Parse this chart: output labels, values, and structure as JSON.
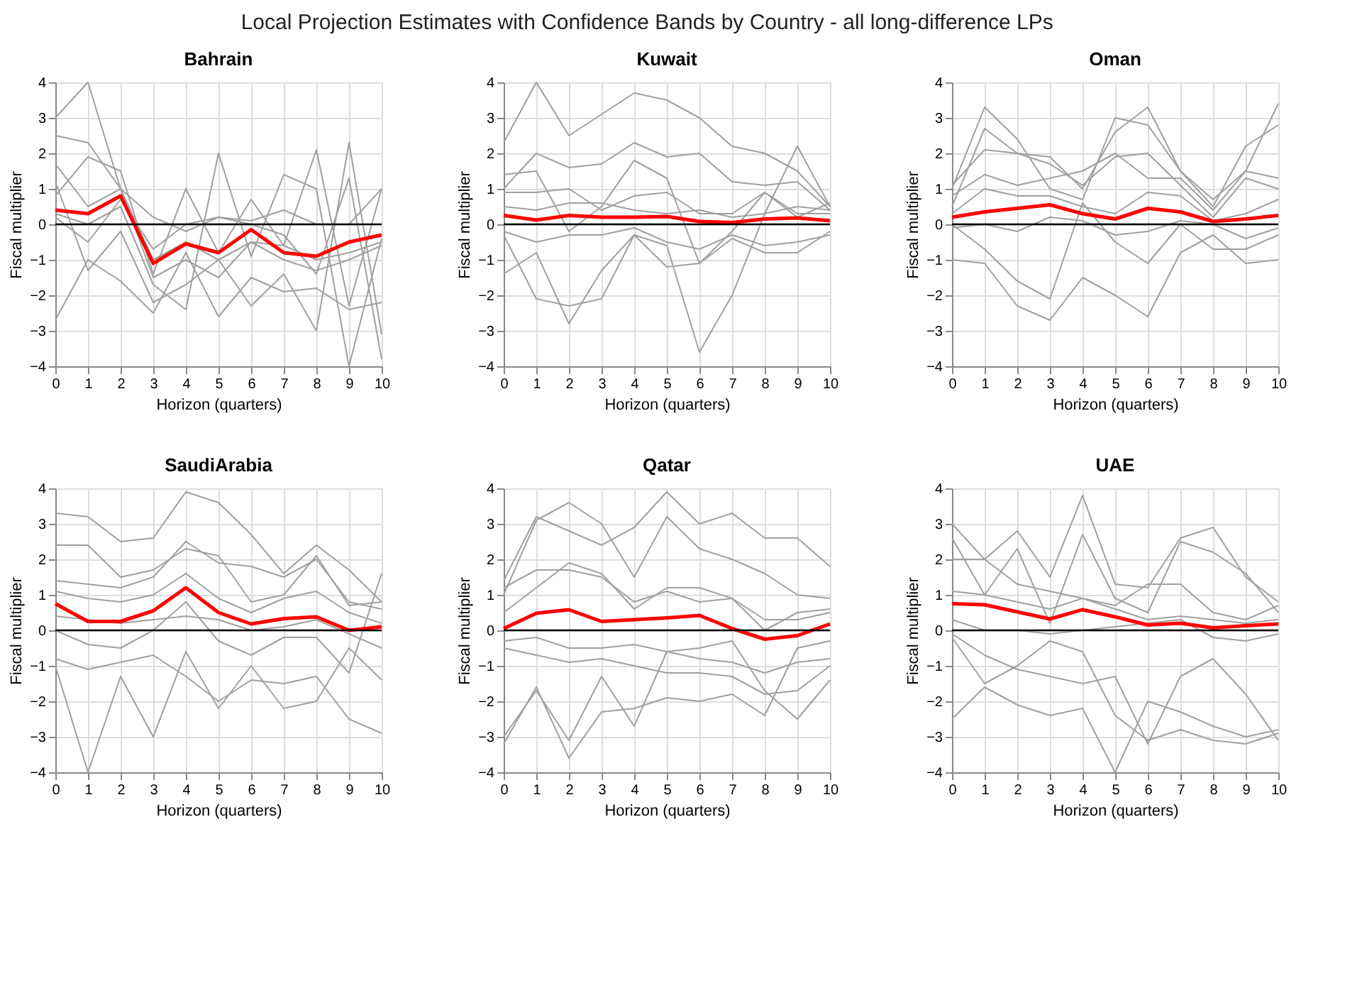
{
  "chart_data": [
    {
      "type": "line",
      "title": "Bahrain",
      "annotations": [
        "Local Projection Estimates with Confidence Bands by Country - all long-difference LPs"
      ],
      "xlabel": "Horizon (quarters)",
      "ylabel": "Fiscal multiplier",
      "x": [
        0,
        1,
        2,
        3,
        4,
        5,
        6,
        7,
        8,
        9,
        10
      ],
      "xlim": [
        0,
        10
      ],
      "xticks": [
        0,
        1,
        2,
        3,
        4,
        5,
        6,
        7,
        8,
        9,
        10
      ],
      "ylim": [
        -4,
        4
      ],
      "yticks": [
        -4,
        -3,
        -2,
        -1,
        0,
        1,
        2,
        3,
        4
      ],
      "grid": true,
      "ref_lines": [
        {
          "axis": "y",
          "value": 0,
          "color": "#000000"
        }
      ],
      "series": [
        {
          "color": "#a0a0a0",
          "values": [
            3.0,
            4.0,
            1.0,
            -1.0,
            -0.5,
            -1.0,
            -0.5,
            -0.6,
            -1.0,
            -0.8,
            -0.5
          ]
        },
        {
          "color": "#a0a0a0",
          "values": [
            2.5,
            2.3,
            1.0,
            -1.5,
            -1.0,
            -1.5,
            -0.5,
            -1.0,
            -1.3,
            -1.0,
            -0.6
          ]
        },
        {
          "color": "#a0a0a0",
          "values": [
            -2.7,
            -1.0,
            -1.6,
            -2.5,
            -0.8,
            -2.6,
            -1.5,
            -1.9,
            -1.8,
            -2.4,
            -2.2
          ]
        },
        {
          "color": "#a0a0a0",
          "values": [
            1.7,
            0.5,
            1.0,
            0.2,
            -0.2,
            0.2,
            0.1,
            0.4,
            0.0,
            0.0,
            1.0
          ]
        },
        {
          "color": "#a0a0a0",
          "values": [
            0.8,
            1.9,
            1.5,
            -1.4,
            1.0,
            -0.8,
            0.7,
            -0.6,
            2.1,
            -2.3,
            1.0
          ]
        },
        {
          "color": "#a0a0a0",
          "values": [
            0.3,
            0.0,
            0.5,
            -1.7,
            -2.4,
            2.0,
            -0.9,
            1.4,
            1.0,
            -4.0,
            -0.4
          ]
        },
        {
          "color": "#a0a0a0",
          "values": [
            1.2,
            -1.3,
            -0.2,
            -2.2,
            -1.7,
            -1.0,
            -2.3,
            -1.4,
            -3.0,
            2.3,
            -3.1
          ]
        },
        {
          "color": "#a0a0a0",
          "values": [
            0.2,
            -0.5,
            0.7,
            -0.7,
            0.0,
            0.2,
            0.0,
            -0.3,
            -1.4,
            1.3,
            -3.8
          ]
        },
        {
          "color": "#ff0000",
          "values": [
            0.4,
            0.3,
            0.8,
            -1.1,
            -0.55,
            -0.8,
            -0.15,
            -0.8,
            -0.9,
            -0.5,
            -0.3
          ]
        }
      ]
    },
    {
      "type": "line",
      "title": "Kuwait",
      "xlabel": "Horizon (quarters)",
      "ylabel": "Fiscal multiplier",
      "x": [
        0,
        1,
        2,
        3,
        4,
        5,
        6,
        7,
        8,
        9,
        10
      ],
      "xlim": [
        0,
        10
      ],
      "xticks": [
        0,
        1,
        2,
        3,
        4,
        5,
        6,
        7,
        8,
        9,
        10
      ],
      "ylim": [
        -4,
        4
      ],
      "yticks": [
        -4,
        -3,
        -2,
        -1,
        0,
        1,
        2,
        3,
        4
      ],
      "grid": true,
      "ref_lines": [
        {
          "axis": "y",
          "value": 0,
          "color": "#000000"
        }
      ],
      "series": [
        {
          "color": "#a0a0a0",
          "values": [
            2.3,
            4.0,
            2.5,
            3.1,
            3.7,
            3.5,
            3.0,
            2.2,
            2.0,
            1.5,
            0.5
          ]
        },
        {
          "color": "#a0a0a0",
          "values": [
            1.0,
            2.0,
            1.6,
            1.7,
            2.3,
            1.9,
            2.0,
            1.2,
            1.1,
            1.2,
            0.4
          ]
        },
        {
          "color": "#a0a0a0",
          "values": [
            1.4,
            1.5,
            -0.2,
            0.5,
            1.8,
            1.3,
            -1.1,
            -0.2,
            0.9,
            0.3,
            0.3
          ]
        },
        {
          "color": "#a0a0a0",
          "values": [
            -1.4,
            -0.8,
            -2.8,
            -1.3,
            -0.3,
            -0.6,
            -3.6,
            -2.0,
            0.3,
            2.2,
            0.5
          ]
        },
        {
          "color": "#a0a0a0",
          "values": [
            -0.3,
            -2.1,
            -2.3,
            -2.1,
            -0.3,
            -1.2,
            -1.1,
            -0.4,
            -0.8,
            -0.8,
            -0.2
          ]
        },
        {
          "color": "#a0a0a0",
          "values": [
            0.9,
            0.9,
            1.0,
            0.4,
            0.8,
            0.9,
            0.3,
            0.3,
            0.9,
            0.2,
            0.6
          ]
        },
        {
          "color": "#a0a0a0",
          "values": [
            -0.2,
            -0.5,
            -0.3,
            -0.3,
            -0.1,
            -0.5,
            -0.7,
            -0.3,
            -0.6,
            -0.5,
            -0.3
          ]
        },
        {
          "color": "#a0a0a0",
          "values": [
            0.5,
            0.4,
            0.6,
            0.6,
            0.4,
            0.3,
            0.4,
            0.2,
            0.3,
            0.5,
            0.4
          ]
        },
        {
          "color": "#ff0000",
          "values": [
            0.25,
            0.12,
            0.25,
            0.2,
            0.2,
            0.22,
            0.08,
            0.05,
            0.15,
            0.18,
            0.1
          ]
        }
      ]
    },
    {
      "type": "line",
      "title": "Oman",
      "xlabel": "Horizon (quarters)",
      "ylabel": "Fiscal multiplier",
      "x": [
        0,
        1,
        2,
        3,
        4,
        5,
        6,
        7,
        8,
        9,
        10
      ],
      "xlim": [
        0,
        10
      ],
      "xticks": [
        0,
        1,
        2,
        3,
        4,
        5,
        6,
        7,
        8,
        9,
        10
      ],
      "ylim": [
        -4,
        4
      ],
      "yticks": [
        -4,
        -3,
        -2,
        -1,
        0,
        1,
        2,
        3,
        4
      ],
      "grid": true,
      "ref_lines": [
        {
          "axis": "y",
          "value": 0,
          "color": "#000000"
        }
      ],
      "series": [
        {
          "color": "#a0a0a0",
          "values": [
            1.0,
            3.3,
            2.4,
            1.0,
            0.7,
            3.0,
            2.8,
            1.5,
            0.7,
            1.5,
            3.4
          ]
        },
        {
          "color": "#a0a0a0",
          "values": [
            0.5,
            2.7,
            2.0,
            1.9,
            1.0,
            2.6,
            3.3,
            1.5,
            0.5,
            2.2,
            2.8
          ]
        },
        {
          "color": "#a0a0a0",
          "values": [
            -1.0,
            -1.1,
            -2.3,
            -2.7,
            -1.5,
            -2.0,
            -2.6,
            -0.8,
            -0.3,
            -1.1,
            -1.0
          ]
        },
        {
          "color": "#a0a0a0",
          "values": [
            0.0,
            -0.7,
            -1.6,
            -2.1,
            0.6,
            -0.5,
            -1.1,
            0.0,
            -0.7,
            -0.7,
            -0.3
          ]
        },
        {
          "color": "#a0a0a0",
          "values": [
            0.8,
            1.4,
            1.1,
            1.3,
            1.5,
            2.0,
            1.3,
            1.3,
            0.4,
            1.5,
            1.3
          ]
        },
        {
          "color": "#a0a0a0",
          "values": [
            1.1,
            2.1,
            2.0,
            1.7,
            1.1,
            1.9,
            2.0,
            1.1,
            0.2,
            1.3,
            1.0
          ]
        },
        {
          "color": "#a0a0a0",
          "values": [
            -0.1,
            0.0,
            -0.2,
            0.2,
            0.1,
            -0.3,
            -0.2,
            0.1,
            0.0,
            -0.4,
            -0.1
          ]
        },
        {
          "color": "#a0a0a0",
          "values": [
            0.3,
            1.0,
            0.8,
            0.8,
            0.5,
            0.3,
            0.9,
            0.8,
            0.1,
            0.3,
            0.7
          ]
        },
        {
          "color": "#ff0000",
          "values": [
            0.2,
            0.35,
            0.45,
            0.55,
            0.3,
            0.15,
            0.45,
            0.35,
            0.08,
            0.15,
            0.25
          ]
        }
      ]
    },
    {
      "type": "line",
      "title": "SaudiArabia",
      "xlabel": "Horizon (quarters)",
      "ylabel": "Fiscal multiplier",
      "x": [
        0,
        1,
        2,
        3,
        4,
        5,
        6,
        7,
        8,
        9,
        10
      ],
      "xlim": [
        0,
        10
      ],
      "xticks": [
        0,
        1,
        2,
        3,
        4,
        5,
        6,
        7,
        8,
        9,
        10
      ],
      "ylim": [
        -4,
        4
      ],
      "yticks": [
        -4,
        -3,
        -2,
        -1,
        0,
        1,
        2,
        3,
        4
      ],
      "grid": true,
      "ref_lines": [
        {
          "axis": "y",
          "value": 0,
          "color": "#000000"
        }
      ],
      "series": [
        {
          "color": "#a0a0a0",
          "values": [
            3.3,
            3.2,
            2.5,
            2.6,
            3.9,
            3.6,
            2.7,
            1.6,
            2.4,
            1.7,
            0.8
          ]
        },
        {
          "color": "#a0a0a0",
          "values": [
            2.4,
            2.4,
            1.5,
            1.7,
            2.3,
            2.1,
            0.8,
            1.0,
            2.1,
            0.7,
            0.8
          ]
        },
        {
          "color": "#a0a0a0",
          "values": [
            -0.8,
            -1.1,
            -0.9,
            -0.7,
            -1.3,
            -2.0,
            -1.4,
            -1.5,
            -1.3,
            -2.5,
            -2.9
          ]
        },
        {
          "color": "#a0a0a0",
          "values": [
            -1.0,
            -4.0,
            -1.3,
            -3.0,
            -0.6,
            -2.2,
            -1.0,
            -2.2,
            -2.0,
            -0.5,
            -1.4
          ]
        },
        {
          "color": "#a0a0a0",
          "values": [
            1.4,
            1.3,
            1.2,
            1.5,
            2.5,
            1.9,
            1.8,
            1.5,
            2.0,
            0.8,
            0.6
          ]
        },
        {
          "color": "#a0a0a0",
          "values": [
            0.0,
            -0.4,
            -0.5,
            0.0,
            0.8,
            -0.3,
            -0.7,
            -0.2,
            -0.2,
            -1.2,
            1.6
          ]
        },
        {
          "color": "#a0a0a0",
          "values": [
            1.1,
            0.9,
            0.8,
            1.0,
            1.6,
            0.9,
            0.5,
            0.9,
            1.1,
            0.5,
            0.2
          ]
        },
        {
          "color": "#a0a0a0",
          "values": [
            0.4,
            0.3,
            0.2,
            0.3,
            0.4,
            0.3,
            0.0,
            0.1,
            0.3,
            -0.1,
            -0.5
          ]
        },
        {
          "color": "#ff0000",
          "values": [
            0.75,
            0.25,
            0.25,
            0.55,
            1.2,
            0.5,
            0.18,
            0.33,
            0.38,
            0.0,
            0.1
          ]
        }
      ]
    },
    {
      "type": "line",
      "title": "Qatar",
      "xlabel": "Horizon (quarters)",
      "ylabel": "Fiscal multiplier",
      "x": [
        0,
        1,
        2,
        3,
        4,
        5,
        6,
        7,
        8,
        9,
        10
      ],
      "xlim": [
        0,
        10
      ],
      "xticks": [
        0,
        1,
        2,
        3,
        4,
        5,
        6,
        7,
        8,
        9,
        10
      ],
      "ylim": [
        -4,
        4
      ],
      "yticks": [
        -4,
        -3,
        -2,
        -1,
        0,
        1,
        2,
        3,
        4
      ],
      "grid": true,
      "ref_lines": [
        {
          "axis": "y",
          "value": 0,
          "color": "#000000"
        }
      ],
      "series": [
        {
          "color": "#a0a0a0",
          "values": [
            1.4,
            3.2,
            2.8,
            2.4,
            2.9,
            3.9,
            3.0,
            3.3,
            2.6,
            2.6,
            1.8
          ]
        },
        {
          "color": "#a0a0a0",
          "values": [
            1.0,
            3.1,
            3.6,
            3.0,
            1.5,
            3.2,
            2.3,
            2.0,
            1.6,
            1.0,
            0.9
          ]
        },
        {
          "color": "#a0a0a0",
          "values": [
            -3.2,
            -1.6,
            -3.6,
            -2.3,
            -2.2,
            -1.9,
            -2.0,
            -1.8,
            -2.4,
            -0.5,
            -0.3
          ]
        },
        {
          "color": "#a0a0a0",
          "values": [
            -3.0,
            -1.7,
            -3.1,
            -1.3,
            -2.7,
            -0.6,
            -0.5,
            -0.3,
            -1.7,
            -2.5,
            -1.4
          ]
        },
        {
          "color": "#a0a0a0",
          "values": [
            0.5,
            1.2,
            1.9,
            1.6,
            0.6,
            1.2,
            1.2,
            0.9,
            0.0,
            0.5,
            0.6
          ]
        },
        {
          "color": "#a0a0a0",
          "values": [
            -0.5,
            -0.7,
            -0.9,
            -0.8,
            -1.0,
            -1.2,
            -1.2,
            -1.3,
            -1.8,
            -1.7,
            -1.0
          ]
        },
        {
          "color": "#a0a0a0",
          "values": [
            -0.3,
            -0.2,
            -0.5,
            -0.5,
            -0.4,
            -0.6,
            -0.8,
            -0.9,
            -1.2,
            -0.9,
            -0.8
          ]
        },
        {
          "color": "#a0a0a0",
          "values": [
            1.2,
            1.7,
            1.7,
            1.5,
            0.8,
            1.1,
            0.8,
            0.9,
            0.3,
            0.3,
            0.5
          ]
        },
        {
          "color": "#ff0000",
          "values": [
            0.05,
            0.48,
            0.58,
            0.25,
            0.3,
            0.35,
            0.42,
            0.05,
            -0.25,
            -0.15,
            0.18
          ]
        }
      ]
    },
    {
      "type": "line",
      "title": "UAE",
      "xlabel": "Horizon (quarters)",
      "ylabel": "Fiscal multiplier",
      "x": [
        0,
        1,
        2,
        3,
        4,
        5,
        6,
        7,
        8,
        9,
        10
      ],
      "xlim": [
        0,
        10
      ],
      "xticks": [
        0,
        1,
        2,
        3,
        4,
        5,
        6,
        7,
        8,
        9,
        10
      ],
      "ylim": [
        -4,
        4
      ],
      "yticks": [
        -4,
        -3,
        -2,
        -1,
        0,
        1,
        2,
        3,
        4
      ],
      "grid": true,
      "ref_lines": [
        {
          "axis": "y",
          "value": 0,
          "color": "#000000"
        }
      ],
      "series": [
        {
          "color": "#a0a0a0",
          "values": [
            3.0,
            2.0,
            2.8,
            1.5,
            3.8,
            1.3,
            1.2,
            2.6,
            2.9,
            1.5,
            0.8
          ]
        },
        {
          "color": "#a0a0a0",
          "values": [
            2.6,
            1.0,
            2.3,
            0.2,
            2.7,
            0.9,
            0.5,
            2.5,
            2.2,
            1.6,
            0.5
          ]
        },
        {
          "color": "#a0a0a0",
          "values": [
            -2.5,
            -1.6,
            -2.1,
            -2.4,
            -2.2,
            -4.0,
            -2.0,
            -2.3,
            -2.7,
            -3.0,
            -2.8
          ]
        },
        {
          "color": "#a0a0a0",
          "values": [
            -0.1,
            -0.7,
            -1.1,
            -1.3,
            -1.5,
            -1.3,
            -3.2,
            -1.3,
            -0.8,
            -1.8,
            -3.1
          ]
        },
        {
          "color": "#a0a0a0",
          "values": [
            2.0,
            2.0,
            1.3,
            1.1,
            0.9,
            0.7,
            1.3,
            1.3,
            0.5,
            0.3,
            0.7
          ]
        },
        {
          "color": "#a0a0a0",
          "values": [
            -0.2,
            -1.5,
            -1.0,
            -0.3,
            -0.6,
            -2.4,
            -3.1,
            -2.8,
            -3.1,
            -3.2,
            -2.9
          ]
        },
        {
          "color": "#a0a0a0",
          "values": [
            0.3,
            0.0,
            0.0,
            -0.1,
            0.0,
            0.1,
            0.2,
            0.3,
            -0.2,
            -0.3,
            -0.1
          ]
        },
        {
          "color": "#a0a0a0",
          "values": [
            1.1,
            1.0,
            0.8,
            0.6,
            0.9,
            0.6,
            0.3,
            0.4,
            0.3,
            0.2,
            0.3
          ]
        },
        {
          "color": "#ff0000",
          "values": [
            0.75,
            0.72,
            0.52,
            0.32,
            0.58,
            0.38,
            0.15,
            0.2,
            0.07,
            0.13,
            0.18
          ]
        }
      ]
    }
  ]
}
